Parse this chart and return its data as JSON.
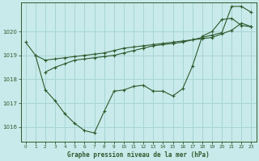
{
  "background_color": "#c8eaea",
  "grid_color": "#a8d4d4",
  "line_color": "#2d5a2d",
  "title": "Graphe pression niveau de la mer (hPa)",
  "xlim": [
    -0.5,
    23.5
  ],
  "ylim": [
    1015.4,
    1021.2
  ],
  "yticks": [
    1016,
    1017,
    1018,
    1019,
    1020
  ],
  "xticks": [
    0,
    1,
    2,
    3,
    4,
    5,
    6,
    7,
    8,
    9,
    10,
    11,
    12,
    13,
    14,
    15,
    16,
    17,
    18,
    19,
    20,
    21,
    22,
    23
  ],
  "line1_x": [
    0,
    1,
    2,
    3,
    4,
    5,
    6,
    7,
    8,
    9,
    10,
    11,
    12,
    13,
    14,
    15,
    16,
    17,
    18,
    19,
    20,
    21,
    22,
    23
  ],
  "line1_y": [
    1019.55,
    1019.0,
    1018.8,
    1018.85,
    1018.9,
    1018.95,
    1019.0,
    1019.05,
    1019.1,
    1019.2,
    1019.3,
    1019.35,
    1019.4,
    1019.45,
    1019.5,
    1019.55,
    1019.6,
    1019.65,
    1019.7,
    1019.75,
    1019.9,
    1020.05,
    1020.35,
    1020.2
  ],
  "line2_x": [
    2,
    3,
    4,
    5,
    6,
    7,
    8,
    9,
    10,
    11,
    12,
    13,
    14,
    15,
    16,
    17,
    18,
    19,
    20,
    21,
    22,
    23
  ],
  "line2_y": [
    1018.3,
    1018.5,
    1018.65,
    1018.8,
    1018.85,
    1018.9,
    1018.95,
    1019.0,
    1019.1,
    1019.2,
    1019.3,
    1019.4,
    1019.45,
    1019.5,
    1019.55,
    1019.65,
    1019.75,
    1019.85,
    1019.95,
    1021.05,
    1021.05,
    1020.8
  ],
  "line3_x": [
    1,
    2,
    3,
    4,
    5,
    6,
    7,
    8,
    9,
    10,
    11,
    12,
    13,
    14,
    15,
    16,
    17,
    18,
    19,
    20,
    21,
    22,
    23
  ],
  "line3_y": [
    1019.0,
    1017.55,
    1017.1,
    1016.55,
    1016.15,
    1015.85,
    1015.75,
    1016.65,
    1017.5,
    1017.55,
    1017.7,
    1017.75,
    1017.5,
    1017.5,
    1017.3,
    1017.6,
    1018.55,
    1019.8,
    1020.0,
    1020.5,
    1020.55,
    1020.25,
    1020.2
  ]
}
